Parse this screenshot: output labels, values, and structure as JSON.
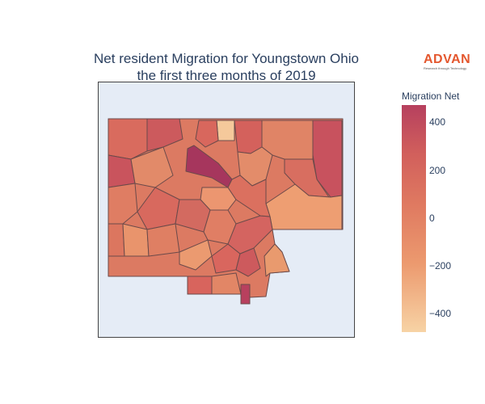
{
  "title": {
    "line1": "Net resident Migration for Youngstown Ohio",
    "line2": "the first three months of 2019"
  },
  "logo": {
    "name": "ADVAN",
    "tagline": "Research through Technology"
  },
  "legend": {
    "title": "Migration Net",
    "ticks": [
      "400",
      "200",
      "0",
      "−200",
      "−400"
    ],
    "range": [
      -480,
      480
    ]
  },
  "colors": {
    "high": "#b6405e",
    "mid": "#e07b61",
    "low": "#f7d3a5",
    "map_background": "#e5ecf6",
    "tract_border": "#6b4a4a"
  }
}
